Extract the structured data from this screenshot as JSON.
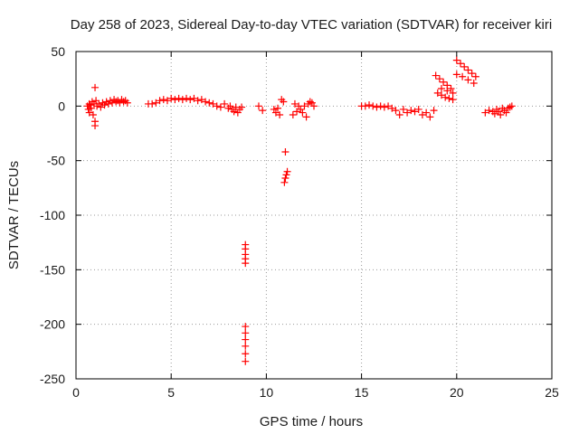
{
  "chart_data": {
    "type": "scatter",
    "title": "Day 258 of 2023, Sidereal Day-to-day VTEC variation (SDTVAR) for receiver kiri",
    "xlabel": "GPS time / hours",
    "ylabel": "SDTVAR / TECUs",
    "xlim": [
      0,
      25
    ],
    "ylim": [
      -250,
      50
    ],
    "xticks": [
      0,
      5,
      10,
      15,
      20,
      25
    ],
    "yticks": [
      -250,
      -200,
      -150,
      -100,
      -50,
      0,
      50
    ],
    "xtick_labels": [
      "0",
      "5",
      "10",
      "15",
      "20",
      "25"
    ],
    "ytick_labels": [
      "-250",
      "-200",
      "-150",
      "-100",
      "-50",
      "0",
      "50"
    ],
    "grid": true,
    "marker": "+",
    "series": [
      {
        "name": "SDTVAR",
        "color": "#ff0000",
        "points": [
          [
            0.6,
            0
          ],
          [
            0.65,
            -3
          ],
          [
            0.7,
            2
          ],
          [
            0.7,
            -6
          ],
          [
            0.75,
            1
          ],
          [
            0.8,
            -2
          ],
          [
            0.85,
            4
          ],
          [
            0.9,
            -8
          ],
          [
            0.95,
            2
          ],
          [
            1.0,
            17
          ],
          [
            1.0,
            -14
          ],
          [
            1.0,
            -18
          ],
          [
            1.05,
            5
          ],
          [
            1.1,
            0
          ],
          [
            1.2,
            2
          ],
          [
            1.3,
            -1
          ],
          [
            1.4,
            3
          ],
          [
            1.5,
            1
          ],
          [
            1.6,
            4
          ],
          [
            1.7,
            2
          ],
          [
            1.8,
            5
          ],
          [
            1.9,
            3
          ],
          [
            2.0,
            6
          ],
          [
            2.1,
            4
          ],
          [
            2.2,
            5
          ],
          [
            2.3,
            3
          ],
          [
            2.4,
            6
          ],
          [
            2.5,
            4
          ],
          [
            2.6,
            5
          ],
          [
            2.7,
            3
          ],
          [
            3.8,
            2
          ],
          [
            4.0,
            2
          ],
          [
            4.2,
            3
          ],
          [
            4.4,
            5
          ],
          [
            4.6,
            6
          ],
          [
            4.8,
            5
          ],
          [
            5.0,
            7
          ],
          [
            5.2,
            6
          ],
          [
            5.4,
            7
          ],
          [
            5.6,
            6
          ],
          [
            5.8,
            7
          ],
          [
            6.0,
            6
          ],
          [
            6.2,
            7
          ],
          [
            6.4,
            5
          ],
          [
            6.6,
            6
          ],
          [
            6.8,
            4
          ],
          [
            7.0,
            3
          ],
          [
            7.2,
            2
          ],
          [
            7.4,
            0
          ],
          [
            7.6,
            -1
          ],
          [
            7.8,
            2
          ],
          [
            8.0,
            -2
          ],
          [
            8.1,
            0
          ],
          [
            8.2,
            -3
          ],
          [
            8.3,
            -5
          ],
          [
            8.4,
            -1
          ],
          [
            8.5,
            -6
          ],
          [
            8.6,
            -3
          ],
          [
            8.7,
            -1
          ],
          [
            8.9,
            -127
          ],
          [
            8.9,
            -131
          ],
          [
            8.9,
            -136
          ],
          [
            8.9,
            -140
          ],
          [
            8.9,
            -144
          ],
          [
            8.9,
            -202
          ],
          [
            8.9,
            -208
          ],
          [
            8.9,
            -214
          ],
          [
            8.9,
            -220
          ],
          [
            8.9,
            -227
          ],
          [
            8.9,
            -234
          ],
          [
            9.6,
            0
          ],
          [
            9.8,
            -4
          ],
          [
            10.4,
            -3
          ],
          [
            10.5,
            -6
          ],
          [
            10.6,
            -2
          ],
          [
            10.7,
            -8
          ],
          [
            10.8,
            6
          ],
          [
            10.9,
            4
          ],
          [
            11.0,
            -42
          ],
          [
            10.95,
            -70
          ],
          [
            11.0,
            -66
          ],
          [
            11.05,
            -63
          ],
          [
            11.1,
            -60
          ],
          [
            11.4,
            -8
          ],
          [
            11.5,
            2
          ],
          [
            11.6,
            -5
          ],
          [
            11.7,
            0
          ],
          [
            11.8,
            -3
          ],
          [
            11.9,
            -6
          ],
          [
            12.0,
            0
          ],
          [
            12.1,
            -10
          ],
          [
            12.2,
            2
          ],
          [
            12.3,
            4
          ],
          [
            12.4,
            3
          ],
          [
            12.5,
            0
          ],
          [
            15.0,
            0
          ],
          [
            15.2,
            0
          ],
          [
            15.4,
            1
          ],
          [
            15.6,
            0
          ],
          [
            15.8,
            -1
          ],
          [
            16.0,
            0
          ],
          [
            16.2,
            -1
          ],
          [
            16.4,
            0
          ],
          [
            16.6,
            -2
          ],
          [
            16.8,
            -4
          ],
          [
            17.0,
            -8
          ],
          [
            17.2,
            -3
          ],
          [
            17.4,
            -6
          ],
          [
            17.6,
            -4
          ],
          [
            17.8,
            -5
          ],
          [
            18.0,
            -3
          ],
          [
            18.2,
            -8
          ],
          [
            18.4,
            -6
          ],
          [
            18.6,
            -10
          ],
          [
            18.8,
            -4
          ],
          [
            18.9,
            28
          ],
          [
            19.1,
            25
          ],
          [
            19.3,
            22
          ],
          [
            19.5,
            19
          ],
          [
            19.7,
            16
          ],
          [
            19.0,
            12
          ],
          [
            19.2,
            10
          ],
          [
            19.4,
            8
          ],
          [
            19.6,
            7
          ],
          [
            19.8,
            6
          ],
          [
            19.2,
            16
          ],
          [
            19.5,
            14
          ],
          [
            19.8,
            12
          ],
          [
            20.0,
            42
          ],
          [
            20.2,
            39
          ],
          [
            20.4,
            36
          ],
          [
            20.6,
            33
          ],
          [
            20.8,
            30
          ],
          [
            21.0,
            27
          ],
          [
            20.0,
            29
          ],
          [
            20.3,
            27
          ],
          [
            20.6,
            24
          ],
          [
            20.9,
            21
          ],
          [
            21.5,
            -6
          ],
          [
            21.7,
            -4
          ],
          [
            21.9,
            -5
          ],
          [
            22.0,
            -7
          ],
          [
            22.1,
            -3
          ],
          [
            22.2,
            -5
          ],
          [
            22.3,
            -8
          ],
          [
            22.4,
            -2
          ],
          [
            22.5,
            -4
          ],
          [
            22.6,
            -6
          ],
          [
            22.7,
            -2
          ],
          [
            22.8,
            -1
          ],
          [
            22.9,
            0
          ]
        ]
      }
    ]
  }
}
